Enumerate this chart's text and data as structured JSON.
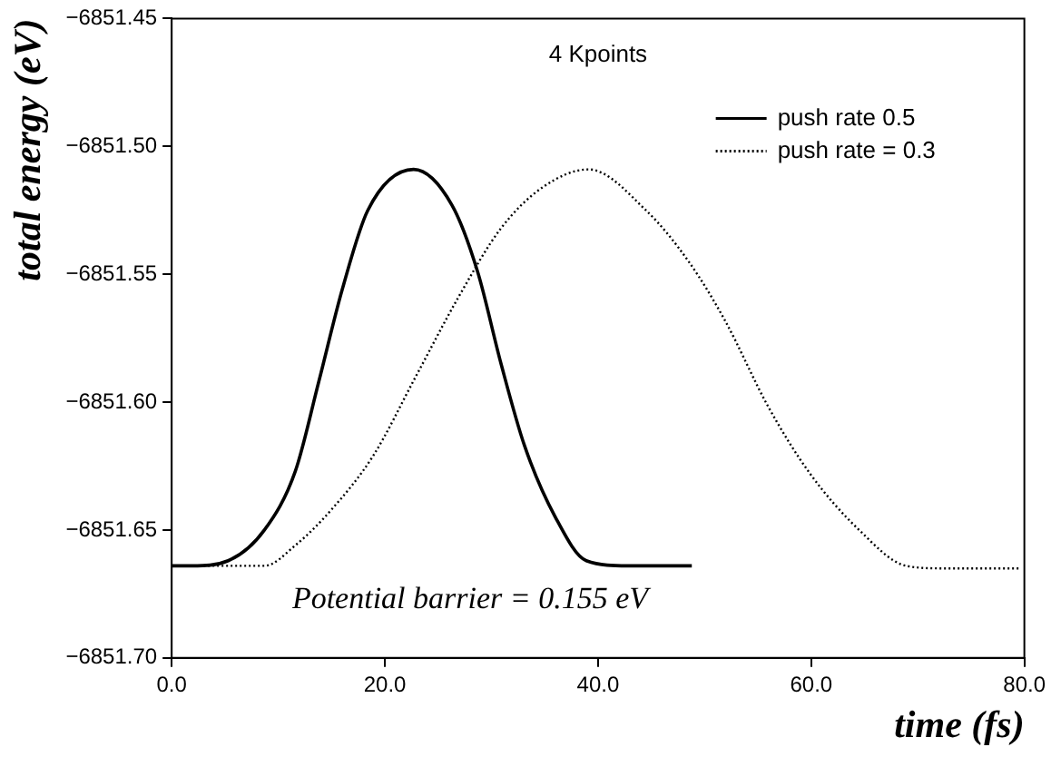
{
  "chart_data": {
    "type": "line",
    "title": "4 Kpoints",
    "xlabel": "time (fs)",
    "ylabel": "total energy (eV)",
    "annotations": [
      "Potential barrier = 0.155 eV"
    ],
    "series": [
      {
        "name": "push rate 0.5",
        "color": "#000000",
        "line_style": "solid",
        "x": [
          0,
          1.9,
          5.3,
          8.7,
          11.6,
          13.8,
          16.0,
          18.4,
          22.7,
          26.3,
          28.7,
          30.9,
          33.1,
          36.0,
          38.9,
          42.8,
          48.8
        ],
        "values": [
          -6851.664,
          -6851.664,
          -6851.662,
          -6851.65,
          -6851.627,
          -6851.592,
          -6851.556,
          -6851.525,
          -6851.509,
          -6851.523,
          -6851.549,
          -6851.585,
          -6851.617,
          -6851.645,
          -6851.662,
          -6851.664,
          -6851.664
        ]
      },
      {
        "name": "push rate = 0.3",
        "color": "#000000",
        "line_style": "dotted",
        "x": [
          0,
          5.8,
          8.7,
          11.6,
          15.0,
          18.9,
          22.9,
          26.9,
          30.9,
          34.8,
          39.1,
          44.5,
          48.5,
          51.9,
          56.0,
          59.9,
          64.5,
          68.9,
          72.4,
          79.5
        ],
        "values": [
          -6851.664,
          -6851.664,
          -6851.664,
          -6851.656,
          -6851.642,
          -6851.621,
          -6851.59,
          -6851.559,
          -6851.532,
          -6851.516,
          -6851.509,
          -6851.525,
          -6851.545,
          -6851.568,
          -6851.602,
          -6851.628,
          -6851.65,
          -6851.664,
          -6851.665,
          -6851.665
        ]
      }
    ],
    "xlim": [
      0,
      80
    ],
    "xticks": [
      {
        "value": 0,
        "label": "0.0"
      },
      {
        "value": 20,
        "label": "20.0"
      },
      {
        "value": 40,
        "label": "40.0"
      },
      {
        "value": 60,
        "label": "60.0"
      },
      {
        "value": 80,
        "label": "80.0"
      }
    ],
    "ylim": [
      -6851.7,
      -6851.45
    ],
    "yticks": [
      {
        "value": -6851.7,
        "label": "−6851.70"
      },
      {
        "value": -6851.65,
        "label": "−6851.65"
      },
      {
        "value": -6851.6,
        "label": "−6851.60"
      },
      {
        "value": -6851.55,
        "label": "−6851.55"
      },
      {
        "value": -6851.5,
        "label": "−6851.50"
      },
      {
        "value": -6851.45,
        "label": "−6851.45"
      }
    ],
    "grid": false,
    "legend": "top right",
    "marker": "none"
  }
}
